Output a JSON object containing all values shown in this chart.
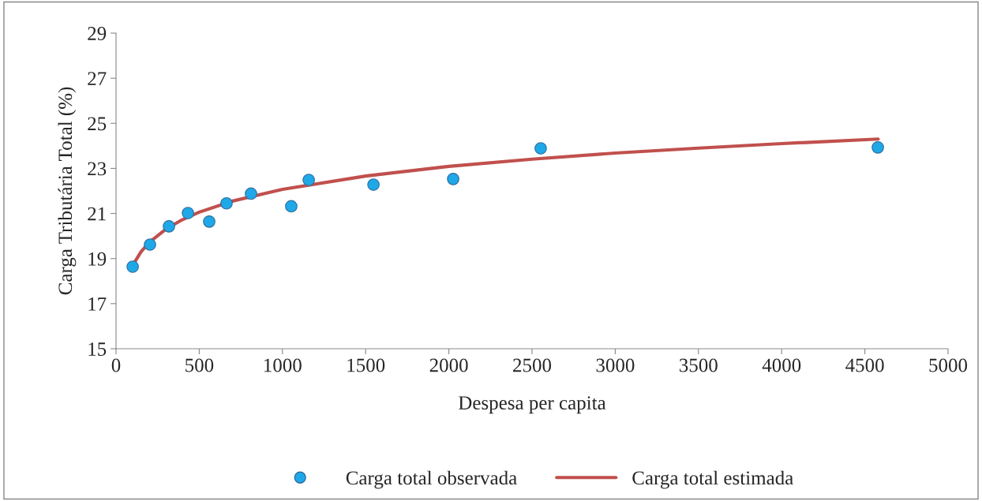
{
  "chart_data": {
    "type": "scatter",
    "xlabel": "Despesa per capita",
    "ylabel": "Carga Tributária Total (%)",
    "xlim": [
      0,
      5000
    ],
    "xticks": [
      0,
      500,
      1000,
      1500,
      2000,
      2500,
      3000,
      3500,
      4000,
      4500,
      5000
    ],
    "ylim": [
      15,
      29
    ],
    "yticks": [
      15,
      17,
      19,
      21,
      23,
      25,
      27,
      29
    ],
    "grid": false,
    "legend": "bottom",
    "series": [
      {
        "name": "Carga total observada",
        "marker": "circle",
        "color": "#1fa8e8",
        "x": [
          100,
          204,
          318,
          432,
          560,
          664,
          811,
          1053,
          1158,
          1547,
          2026,
          2552,
          4578
        ],
        "values": [
          18.64,
          19.62,
          20.43,
          21.02,
          20.64,
          21.45,
          21.88,
          21.32,
          22.49,
          22.28,
          22.53,
          23.89,
          23.93
        ]
      },
      {
        "name": "Carga total estimada",
        "type": "line",
        "marker": "none",
        "color": "#c0504d",
        "x": [
          100,
          150,
          200,
          300,
          400,
          500,
          700,
          1000,
          1500,
          2000,
          2500,
          3000,
          3500,
          4000,
          4580
        ],
        "values": [
          18.7,
          19.3,
          19.72,
          20.31,
          20.73,
          21.06,
          21.55,
          22.07,
          22.66,
          23.09,
          23.41,
          23.68,
          23.9,
          24.1,
          24.3
        ]
      }
    ]
  }
}
